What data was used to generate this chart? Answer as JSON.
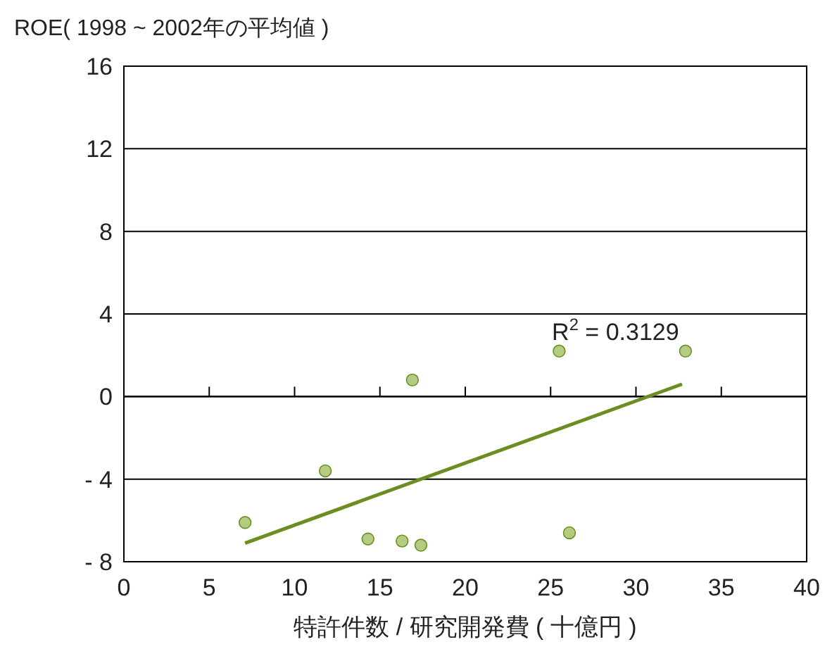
{
  "chart_data": {
    "type": "scatter",
    "xlabel": "特許件数 / 研究開発費 ( 十億円 )",
    "ylabel": "ROE( 1998 ~ 2002年の平均値 )",
    "xlim": [
      0,
      40
    ],
    "ylim": [
      -8,
      16
    ],
    "xticks": [
      0,
      5,
      10,
      15,
      20,
      25,
      30,
      35,
      40
    ],
    "yticks": [
      {
        "value": -8,
        "label": "- 8"
      },
      {
        "value": -4,
        "label": "- 4"
      },
      0,
      4,
      8,
      12,
      16
    ],
    "grid": "y",
    "series": [
      {
        "marker": "circle",
        "color": "#b3cc82",
        "x": [
          7.1,
          11.8,
          14.3,
          16.3,
          17.4,
          16.9,
          25.5,
          26.1,
          32.9
        ],
        "values": [
          -6.1,
          -3.6,
          -6.9,
          -7.0,
          -7.2,
          0.8,
          2.2,
          -6.6,
          2.2
        ]
      },
      {
        "type": "line",
        "color": "#6b8e23",
        "x": [
          7.1,
          32.7
        ],
        "values": [
          -7.1,
          0.6
        ]
      }
    ],
    "annotations": [
      "R$^{2}$ = 0.3129"
    ]
  }
}
